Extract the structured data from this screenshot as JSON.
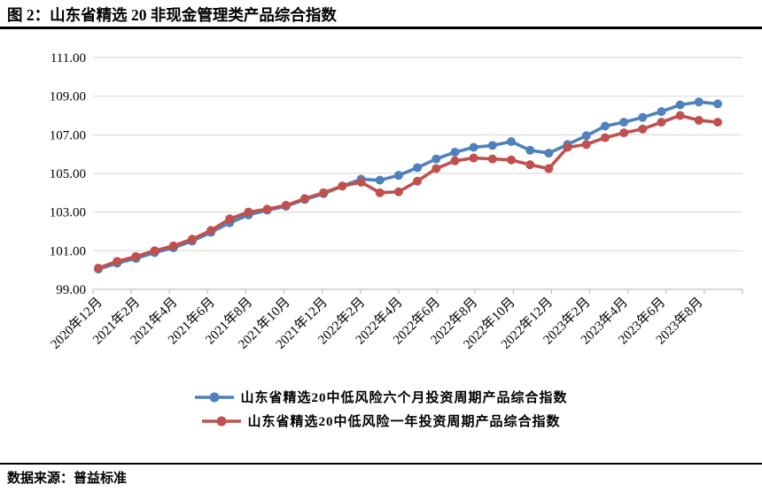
{
  "header": {
    "title": "图 2：山东省精选 20 非现金管理类产品综合指数"
  },
  "footer": {
    "source_label": "数据来源：普益标准"
  },
  "colors": {
    "series_blue": "#4F81BD",
    "series_red": "#C0504D",
    "gridline": "#D9D9D9",
    "axis": "#BFBFBF",
    "text": "#000000",
    "rule": "#000000"
  },
  "chart_data": {
    "type": "line",
    "title": "图 2：山东省精选 20 非现金管理类产品综合指数",
    "grid": "horizontal",
    "legend_position": "bottom",
    "ylim": [
      99,
      111
    ],
    "y_tick_step": 2,
    "y_tick_labels": [
      "99.00",
      "101.00",
      "103.00",
      "105.00",
      "107.00",
      "109.00",
      "111.00"
    ],
    "x_tick_labels": [
      "2020年12月",
      "2021年2月",
      "2021年4月",
      "2021年6月",
      "2021年8月",
      "2021年10月",
      "2021年12月",
      "2022年2月",
      "2022年4月",
      "2022年6月",
      "2022年8月",
      "2022年10月",
      "2022年12月",
      "2023年2月",
      "2023年4月",
      "2023年6月",
      "2023年8月"
    ],
    "categories": [
      "2020年12月",
      "2021年1月",
      "2021年2月",
      "2021年3月",
      "2021年4月",
      "2021年5月",
      "2021年6月",
      "2021年7月",
      "2021年8月",
      "2021年9月",
      "2021年10月",
      "2021年11月",
      "2021年12月",
      "2022年1月",
      "2022年2月",
      "2022年3月",
      "2022年4月",
      "2022年5月",
      "2022年6月",
      "2022年7月",
      "2022年8月",
      "2022年9月",
      "2022年10月",
      "2022年11月",
      "2022年12月",
      "2023年1月",
      "2023年2月",
      "2023年3月",
      "2023年4月",
      "2023年5月",
      "2023年6月",
      "2023年7月",
      "2023年8月",
      "2023年9月"
    ],
    "series": [
      {
        "name": "山东省精选20中低风险六个月投资周期产品综合指数",
        "color": "#4F81BD",
        "values": [
          100.05,
          100.35,
          100.6,
          100.9,
          101.15,
          101.5,
          101.95,
          102.45,
          102.85,
          103.1,
          103.3,
          103.65,
          103.95,
          104.35,
          104.7,
          104.65,
          104.9,
          105.3,
          105.75,
          106.1,
          106.35,
          106.45,
          106.65,
          106.2,
          106.05,
          106.5,
          106.95,
          107.45,
          107.65,
          107.9,
          108.2,
          108.55,
          108.7,
          108.6
        ]
      },
      {
        "name": "山东省精选20中低风险一年投资周期产品综合指数",
        "color": "#C0504D",
        "values": [
          100.1,
          100.45,
          100.7,
          101.0,
          101.25,
          101.6,
          102.05,
          102.65,
          103.0,
          103.15,
          103.35,
          103.7,
          104.0,
          104.35,
          104.55,
          104.0,
          104.05,
          104.6,
          105.25,
          105.65,
          105.8,
          105.75,
          105.7,
          105.45,
          105.25,
          106.35,
          106.5,
          106.85,
          107.1,
          107.3,
          107.65,
          108.0,
          107.75,
          107.65
        ]
      }
    ]
  }
}
